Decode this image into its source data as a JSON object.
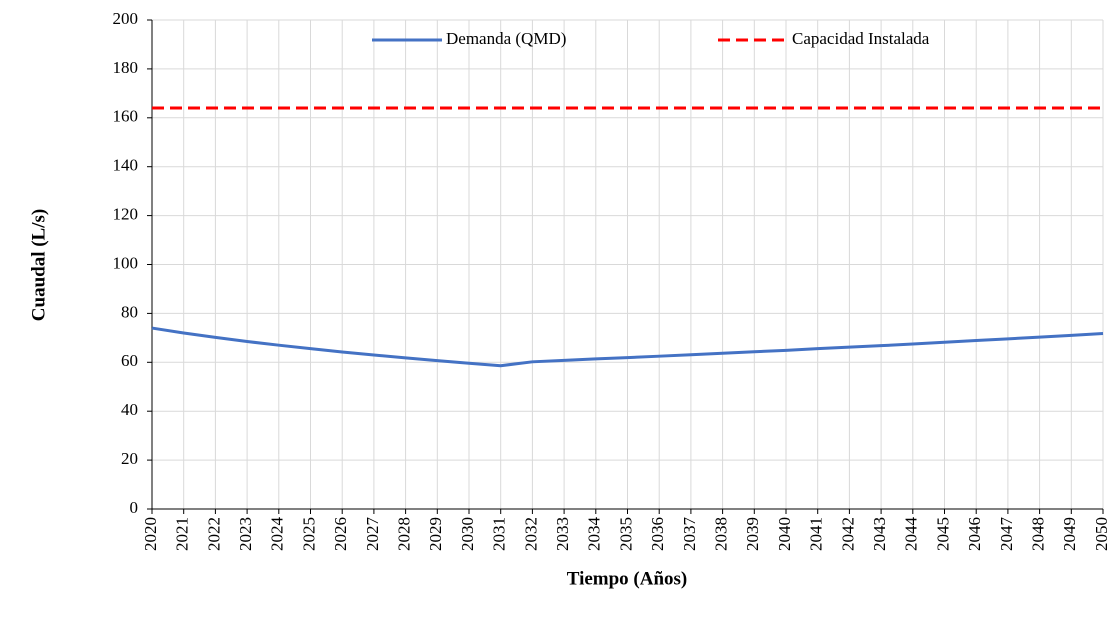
{
  "chart_data": {
    "type": "line",
    "xlabel": "Tiempo (Años)",
    "ylabel": "Cuaudal (L/s)",
    "x": [
      2020,
      2021,
      2022,
      2023,
      2024,
      2025,
      2026,
      2027,
      2028,
      2029,
      2030,
      2031,
      2032,
      2033,
      2034,
      2035,
      2036,
      2037,
      2038,
      2039,
      2040,
      2041,
      2042,
      2043,
      2044,
      2045,
      2046,
      2047,
      2048,
      2049,
      2050
    ],
    "series": [
      {
        "name": "Demanda (QMD)",
        "color": "#4472c4",
        "dash": false,
        "values": [
          74,
          72,
          70.2,
          68.5,
          67,
          65.6,
          64.2,
          63,
          61.8,
          60.7,
          59.6,
          58.6,
          60.2,
          60.8,
          61.4,
          61.9,
          62.5,
          63.1,
          63.7,
          64.3,
          64.9,
          65.6,
          66.2,
          66.8,
          67.5,
          68.2,
          68.9,
          69.6,
          70.3,
          71,
          71.8
        ]
      },
      {
        "name": "Capacidad Instalada",
        "color": "#ff0000",
        "dash": true,
        "values": [
          164,
          164,
          164,
          164,
          164,
          164,
          164,
          164,
          164,
          164,
          164,
          164,
          164,
          164,
          164,
          164,
          164,
          164,
          164,
          164,
          164,
          164,
          164,
          164,
          164,
          164,
          164,
          164,
          164,
          164,
          164
        ]
      }
    ],
    "xlim": [
      2020,
      2050
    ],
    "xticks": [
      2020,
      2021,
      2022,
      2023,
      2024,
      2025,
      2026,
      2027,
      2028,
      2029,
      2030,
      2031,
      2032,
      2033,
      2034,
      2035,
      2036,
      2037,
      2038,
      2039,
      2040,
      2041,
      2042,
      2043,
      2044,
      2045,
      2046,
      2047,
      2048,
      2049,
      2050
    ],
    "ylim": [
      0,
      200
    ],
    "yticks": [
      0,
      20,
      40,
      60,
      80,
      100,
      120,
      140,
      160,
      180,
      200
    ],
    "grid": true,
    "legend": "top"
  }
}
